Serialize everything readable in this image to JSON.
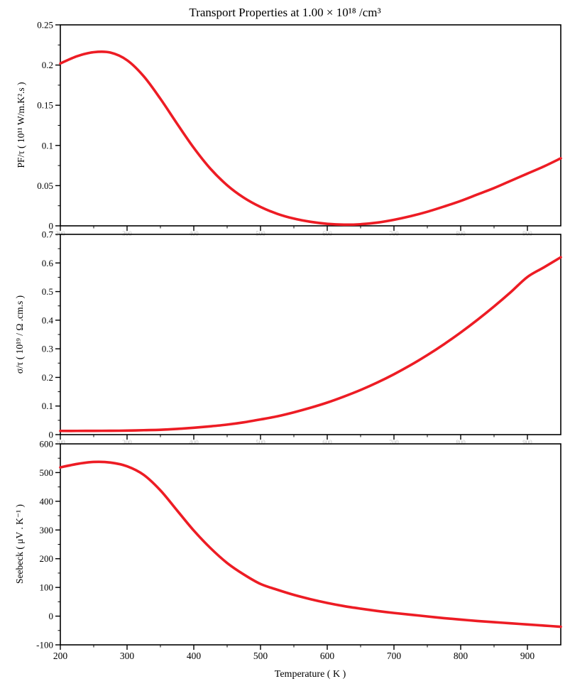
{
  "title": "Transport Properties at 1.00 × 10¹⁸ /cm³",
  "xlabel": "Temperature ( K )",
  "background": "#ffffff",
  "line_color": "#ed1c24",
  "axis_color": "#000000",
  "faint_tick_label_color": "#c0c0c0",
  "chart_data": [
    {
      "type": "line",
      "name": "power-factor-over-tau",
      "ylabel": "PF/τ ( 10¹¹ W/m.K².s )",
      "xlim": [
        200,
        950
      ],
      "ylim": [
        0,
        0.25
      ],
      "xticks": [
        200,
        300,
        400,
        500,
        600,
        700,
        800,
        900
      ],
      "yticks": [
        0,
        0.05,
        0.1,
        0.15,
        0.2,
        0.25
      ],
      "xminor": 50,
      "yminor": 0.025,
      "xtick_style": "faint",
      "x": [
        200,
        225,
        250,
        275,
        300,
        325,
        350,
        375,
        400,
        425,
        450,
        475,
        500,
        525,
        550,
        575,
        600,
        625,
        650,
        675,
        700,
        725,
        750,
        775,
        800,
        825,
        850,
        875,
        900,
        925,
        950
      ],
      "y": [
        0.202,
        0.211,
        0.216,
        0.2155,
        0.206,
        0.186,
        0.158,
        0.127,
        0.097,
        0.071,
        0.0505,
        0.035,
        0.0235,
        0.015,
        0.009,
        0.005,
        0.0025,
        0.0015,
        0.002,
        0.004,
        0.0075,
        0.012,
        0.0175,
        0.024,
        0.031,
        0.039,
        0.047,
        0.056,
        0.065,
        0.074,
        0.084
      ]
    },
    {
      "type": "line",
      "name": "conductivity-over-tau",
      "ylabel": "σ/τ ( 10¹⁹ / Ω .cm.s )",
      "xlim": [
        200,
        950
      ],
      "ylim": [
        0,
        0.7
      ],
      "xticks": [
        200,
        300,
        400,
        500,
        600,
        700,
        800,
        900
      ],
      "yticks": [
        0,
        0.1,
        0.2,
        0.3,
        0.4,
        0.5,
        0.6,
        0.7
      ],
      "xminor": 50,
      "yminor": 0.05,
      "xtick_style": "faint",
      "x": [
        200,
        225,
        250,
        275,
        300,
        325,
        350,
        375,
        400,
        425,
        450,
        475,
        500,
        525,
        550,
        575,
        600,
        625,
        650,
        675,
        700,
        725,
        750,
        775,
        800,
        825,
        850,
        875,
        900,
        925,
        950
      ],
      "y": [
        0.013,
        0.013,
        0.0132,
        0.0135,
        0.014,
        0.0155,
        0.017,
        0.02,
        0.024,
        0.029,
        0.035,
        0.043,
        0.053,
        0.064,
        0.078,
        0.094,
        0.112,
        0.133,
        0.156,
        0.182,
        0.211,
        0.243,
        0.278,
        0.316,
        0.357,
        0.401,
        0.448,
        0.498,
        0.551,
        0.585,
        0.62
      ]
    },
    {
      "type": "line",
      "name": "seebeck-coefficient",
      "ylabel": "Seebeck ( μV . K⁻¹ )",
      "xlim": [
        200,
        950
      ],
      "ylim": [
        -100,
        600
      ],
      "xticks": [
        200,
        300,
        400,
        500,
        600,
        700,
        800,
        900
      ],
      "yticks": [
        -100,
        0,
        100,
        200,
        300,
        400,
        500,
        600
      ],
      "xminor": 50,
      "yminor": 50,
      "xtick_style": "normal",
      "x": [
        200,
        225,
        250,
        275,
        300,
        325,
        350,
        375,
        400,
        425,
        450,
        475,
        500,
        525,
        550,
        575,
        600,
        625,
        650,
        675,
        700,
        725,
        750,
        775,
        800,
        825,
        850,
        875,
        900,
        925,
        950
      ],
      "y": [
        518,
        530,
        537,
        535,
        522,
        492,
        438,
        368,
        298,
        237,
        185,
        145,
        112,
        92,
        74,
        59,
        46,
        35,
        26,
        18,
        11,
        5,
        -1,
        -7,
        -12,
        -17,
        -21,
        -25,
        -29,
        -33,
        -37
      ]
    }
  ]
}
